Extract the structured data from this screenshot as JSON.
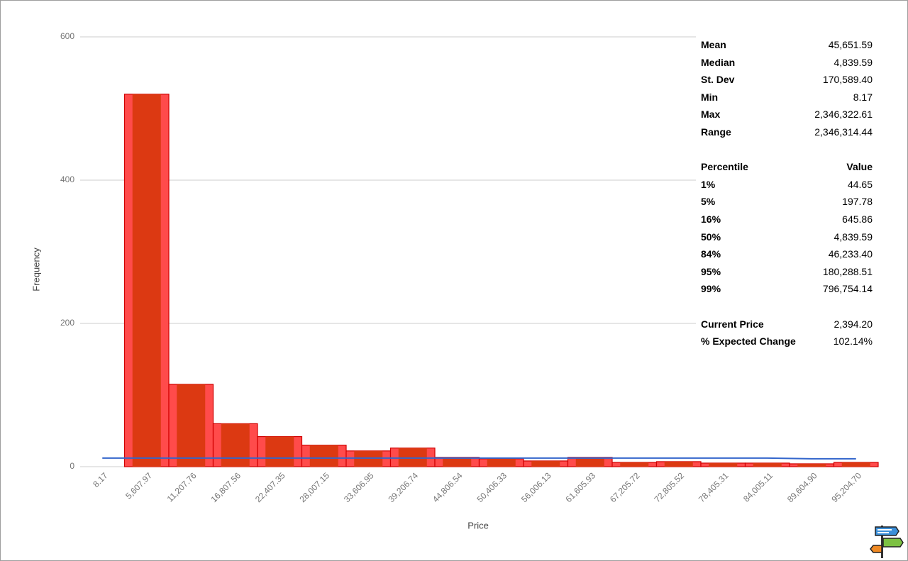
{
  "chart_data": {
    "type": "bar",
    "x_label": "Price",
    "y_label": "Frequency",
    "categories": [
      "8.17",
      "5,607.97",
      "11,207.76",
      "16,807.56",
      "22,407.35",
      "28,007.15",
      "33,606.95",
      "39,206.74",
      "44,806.54",
      "50,406.33",
      "56,006.13",
      "61,605.93",
      "67,205.72",
      "72,805.52",
      "78,405.31",
      "84,005.11",
      "89,604.90",
      "95,204.70"
    ],
    "series": [
      {
        "type": "bar",
        "color": "#ff4b4b",
        "values": [
          0,
          520,
          115,
          60,
          42,
          30,
          22,
          26,
          13,
          11,
          8,
          13,
          6,
          7,
          5,
          5,
          4,
          6
        ]
      },
      {
        "type": "line",
        "color": "#3366cc",
        "values": [
          12,
          12,
          12,
          12,
          12,
          12,
          12,
          12,
          12,
          12,
          12,
          12,
          12,
          12,
          12,
          12,
          11,
          11
        ]
      }
    ],
    "ylim": [
      0,
      600
    ],
    "yticks": [
      0,
      200,
      400,
      600
    ],
    "grid": true
  },
  "statistics": {
    "summary": [
      [
        "Mean",
        "45,651.59"
      ],
      [
        "Median",
        "4,839.59"
      ],
      [
        "St. Dev",
        "170,589.40"
      ],
      [
        "Min",
        "8.17"
      ],
      [
        "Max",
        "2,346,322.61"
      ],
      [
        "Range",
        "2,346,314.44"
      ]
    ],
    "percentile_header": [
      "Percentile",
      "Value"
    ],
    "percentiles": [
      [
        "1%",
        "44.65"
      ],
      [
        "5%",
        "197.78"
      ],
      [
        "16%",
        "645.86"
      ],
      [
        "50%",
        "4,839.59"
      ],
      [
        "84%",
        "46,233.40"
      ],
      [
        "95%",
        "180,288.51"
      ],
      [
        "99%",
        "796,754.14"
      ]
    ],
    "price": [
      [
        "Current Price",
        "2,394.20"
      ],
      [
        "% Expected Change",
        "102.14%"
      ]
    ]
  }
}
